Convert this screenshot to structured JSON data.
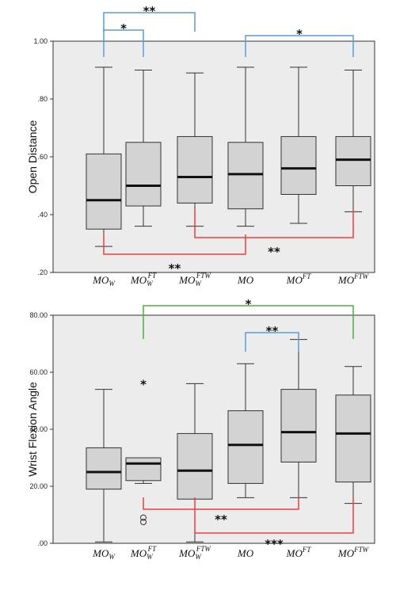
{
  "chart_data": [
    {
      "type": "box",
      "ylabel": "Open Distance",
      "ylim": [
        0.2,
        1.0
      ],
      "yticks": [
        ".20",
        ".40",
        ".60",
        ".80",
        "1.00"
      ],
      "ytick_values": [
        0.2,
        0.4,
        0.6,
        0.8,
        1.0
      ],
      "categories": [
        {
          "base": "MO",
          "sub": "W",
          "sup": ""
        },
        {
          "base": "MO",
          "sub": "W",
          "sup": "FT"
        },
        {
          "base": "MO",
          "sub": "W",
          "sup": "FTW"
        },
        {
          "base": "MO",
          "sub": "",
          "sup": ""
        },
        {
          "base": "MO",
          "sub": "",
          "sup": "FT"
        },
        {
          "base": "MO",
          "sub": "",
          "sup": "FTW"
        }
      ],
      "boxes": [
        {
          "min": 0.29,
          "q1": 0.35,
          "median": 0.45,
          "q3": 0.61,
          "max": 0.91
        },
        {
          "min": 0.36,
          "q1": 0.43,
          "median": 0.5,
          "q3": 0.65,
          "max": 0.9
        },
        {
          "min": 0.36,
          "q1": 0.44,
          "median": 0.53,
          "q3": 0.67,
          "max": 0.89
        },
        {
          "min": 0.36,
          "q1": 0.42,
          "median": 0.54,
          "q3": 0.65,
          "max": 0.91
        },
        {
          "min": 0.37,
          "q1": 0.47,
          "median": 0.56,
          "q3": 0.67,
          "max": 0.91
        },
        {
          "min": 0.41,
          "q1": 0.5,
          "median": 0.59,
          "q3": 0.67,
          "max": 0.9
        }
      ],
      "outliers": [],
      "brackets": [
        {
          "from": 0,
          "to": 2,
          "label": "**",
          "color": "#5b9bd5",
          "position": "top"
        },
        {
          "from": 0,
          "to": 1,
          "label": "*",
          "color": "#5b9bd5",
          "position": "top"
        },
        {
          "from": 3,
          "to": 5,
          "label": "*",
          "color": "#5b9bd5",
          "position": "top"
        },
        {
          "from": 2,
          "to": 5,
          "label": "**",
          "color": "#e8413c",
          "position": "bottom"
        },
        {
          "from": 0,
          "to": 3,
          "label": "**",
          "color": "#e8413c",
          "position": "bottom"
        }
      ]
    },
    {
      "type": "box",
      "ylabel": "Wrist Flexion Angle",
      "ylim": [
        0,
        80
      ],
      "yticks": [
        ".00",
        "20.00",
        "40.00",
        "60.00",
        "80.00"
      ],
      "ytick_values": [
        0,
        20,
        40,
        60,
        80
      ],
      "categories": [
        {
          "base": "MO",
          "sub": "W",
          "sup": ""
        },
        {
          "base": "MO",
          "sub": "W",
          "sup": "FT"
        },
        {
          "base": "MO",
          "sub": "W",
          "sup": "FTW"
        },
        {
          "base": "MO",
          "sub": "",
          "sup": ""
        },
        {
          "base": "MO",
          "sub": "",
          "sup": "FT"
        },
        {
          "base": "MO",
          "sub": "",
          "sup": "FTW"
        }
      ],
      "boxes": [
        {
          "min": 0.5,
          "q1": 19,
          "median": 25,
          "q3": 33.5,
          "max": 54
        },
        {
          "min": 21,
          "q1": 22,
          "median": 28,
          "q3": 30,
          "max": 30
        },
        {
          "min": 0.5,
          "q1": 15.5,
          "median": 25.5,
          "q3": 38.5,
          "max": 56
        },
        {
          "min": 16,
          "q1": 21,
          "median": 34.5,
          "q3": 46.5,
          "max": 63
        },
        {
          "min": 16,
          "q1": 28.5,
          "median": 39,
          "q3": 54,
          "max": 71.5
        },
        {
          "min": 14,
          "q1": 21.5,
          "median": 38.5,
          "q3": 52,
          "max": 62
        }
      ],
      "outliers": [
        {
          "cat": 1,
          "value": 56,
          "marker": "star"
        },
        {
          "cat": 1,
          "value": 9,
          "marker": "circle"
        },
        {
          "cat": 1,
          "value": 7.5,
          "marker": "circle"
        }
      ],
      "brackets": [
        {
          "from": 1,
          "to": 5,
          "label": "*",
          "color": "#4caf3c",
          "position": "top"
        },
        {
          "from": 3,
          "to": 4,
          "label": "**",
          "color": "#5b9bd5",
          "position": "top"
        },
        {
          "from": 1,
          "to": 4,
          "label": "**",
          "color": "#e8413c",
          "position": "bottom"
        },
        {
          "from": 2,
          "to": 5,
          "label": "***",
          "color": "#e8413c",
          "position": "bottom"
        }
      ]
    }
  ]
}
